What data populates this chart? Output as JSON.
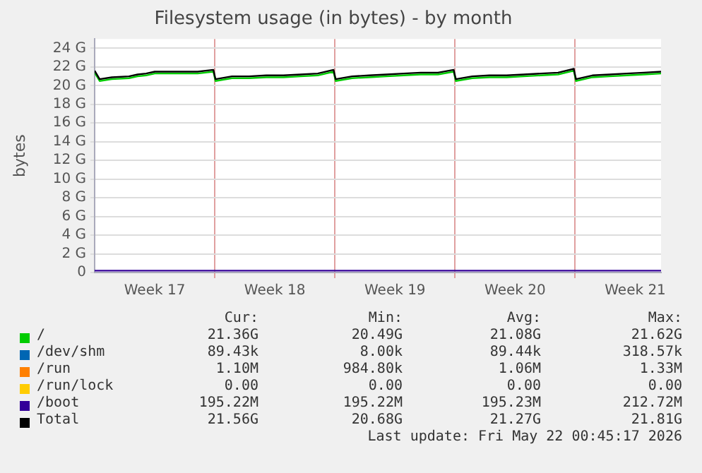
{
  "chart_data": {
    "type": "line",
    "title": "Filesystem usage (in bytes) - by month",
    "ylabel": "bytes",
    "x": [
      "2026-04-20T00:00",
      "2026-04-20T07:00",
      "2026-04-21T00:00",
      "2026-04-22T00:00",
      "2026-04-22T12:00",
      "2026-04-23T00:00",
      "2026-04-23T12:00",
      "2026-04-24T00:00",
      "2026-04-25T00:00",
      "2026-04-26T00:00",
      "2026-04-26T22:00",
      "2026-04-27T01:00",
      "2026-04-28T00:00",
      "2026-04-29T00:00",
      "2026-04-30T00:00",
      "2026-05-01T00:00",
      "2026-05-02T00:00",
      "2026-05-03T00:00",
      "2026-05-03T22:00",
      "2026-05-04T01:00",
      "2026-05-05T00:00",
      "2026-05-06T00:00",
      "2026-05-07T00:00",
      "2026-05-08T00:00",
      "2026-05-09T00:00",
      "2026-05-10T00:00",
      "2026-05-10T22:00",
      "2026-05-11T01:00",
      "2026-05-12T00:00",
      "2026-05-13T00:00",
      "2026-05-14T00:00",
      "2026-05-15T00:00",
      "2026-05-16T00:00",
      "2026-05-17T00:00",
      "2026-05-17T22:00",
      "2026-05-18T01:00",
      "2026-05-19T00:00",
      "2026-05-20T00:00",
      "2026-05-21T00:00",
      "2026-05-22T00:00",
      "2026-05-23T00:00"
    ],
    "series": [
      {
        "name": "/",
        "color": "#00cc00",
        "values": [
          21.4,
          20.5,
          20.7,
          20.8,
          21.0,
          21.1,
          21.3,
          21.3,
          21.3,
          21.3,
          21.5,
          20.5,
          20.8,
          20.8,
          20.9,
          20.9,
          21.0,
          21.1,
          21.5,
          20.5,
          20.8,
          20.9,
          21.0,
          21.1,
          21.2,
          21.2,
          21.5,
          20.5,
          20.8,
          20.9,
          20.9,
          21.0,
          21.1,
          21.2,
          21.6,
          20.5,
          20.9,
          21.0,
          21.1,
          21.2,
          21.3
        ]
      },
      {
        "name": "/dev/shm",
        "color": "#0066b3",
        "values": [
          null,
          null,
          null,
          null,
          null,
          null,
          null,
          null,
          null,
          null,
          null,
          null,
          null,
          null,
          null,
          null,
          null,
          null,
          null,
          null,
          null,
          null,
          null,
          null,
          null,
          null,
          null,
          null,
          null,
          null,
          null,
          null,
          null,
          null,
          null,
          null,
          null,
          null,
          null,
          null,
          null
        ]
      },
      {
        "name": "/run",
        "color": "#ff8000",
        "values": [
          null,
          null,
          null,
          null,
          null,
          null,
          null,
          null,
          null,
          null,
          null,
          null,
          null,
          null,
          null,
          null,
          null,
          null,
          null,
          null,
          null,
          null,
          null,
          null,
          null,
          null,
          null,
          null,
          null,
          null,
          null,
          null,
          null,
          null,
          null,
          null,
          null,
          null,
          null,
          null,
          null
        ]
      },
      {
        "name": "/run/lock",
        "color": "#ffcc00",
        "values": [
          null,
          null,
          null,
          null,
          null,
          null,
          null,
          null,
          null,
          null,
          null,
          null,
          null,
          null,
          null,
          null,
          null,
          null,
          null,
          null,
          null,
          null,
          null,
          null,
          null,
          null,
          null,
          null,
          null,
          null,
          null,
          null,
          null,
          null,
          null,
          null,
          null,
          null,
          null,
          null,
          null
        ]
      },
      {
        "name": "/boot",
        "color": "#330099",
        "values": [
          0.2,
          0.2,
          0.2,
          0.2,
          0.2,
          0.2,
          0.2,
          0.2,
          0.2,
          0.2,
          0.2,
          0.2,
          0.2,
          0.2,
          0.2,
          0.2,
          0.2,
          0.2,
          0.2,
          0.2,
          0.2,
          0.2,
          0.2,
          0.2,
          0.2,
          0.2,
          0.2,
          0.2,
          0.2,
          0.2,
          0.2,
          0.2,
          0.2,
          0.2,
          0.2,
          0.2,
          0.2,
          0.2,
          0.2,
          0.2,
          0.2
        ]
      },
      {
        "name": "Total",
        "color": "#000000",
        "values": [
          21.6,
          20.7,
          20.9,
          21.0,
          21.2,
          21.3,
          21.5,
          21.5,
          21.5,
          21.5,
          21.7,
          20.7,
          21.0,
          21.0,
          21.1,
          21.1,
          21.2,
          21.3,
          21.7,
          20.7,
          21.0,
          21.1,
          21.2,
          21.3,
          21.4,
          21.4,
          21.7,
          20.7,
          21.0,
          21.1,
          21.1,
          21.2,
          21.3,
          21.4,
          21.8,
          20.7,
          21.1,
          21.2,
          21.3,
          21.4,
          21.5
        ]
      }
    ],
    "xlim": [
      "2026-04-20T00:00",
      "2026-05-23T00:00"
    ],
    "xticks": [
      {
        "value": "2026-04-23T12:00",
        "label": "Week 17"
      },
      {
        "value": "2026-04-27T00:00",
        "label": null
      },
      {
        "value": "2026-04-30T12:00",
        "label": "Week 18"
      },
      {
        "value": "2026-05-04T00:00",
        "label": null
      },
      {
        "value": "2026-05-07T12:00",
        "label": "Week 19"
      },
      {
        "value": "2026-05-11T00:00",
        "label": null
      },
      {
        "value": "2026-05-14T12:00",
        "label": "Week 20"
      },
      {
        "value": "2026-05-18T00:00",
        "label": null
      },
      {
        "value": "2026-05-21T12:00",
        "label": "Week 21"
      }
    ],
    "ylim": [
      0,
      25
    ],
    "yticks": [
      {
        "value": 0,
        "label": "0"
      },
      {
        "value": 2,
        "label": "2 G"
      },
      {
        "value": 4,
        "label": "4 G"
      },
      {
        "value": 6,
        "label": "6 G"
      },
      {
        "value": 8,
        "label": "8 G"
      },
      {
        "value": 10,
        "label": "10 G"
      },
      {
        "value": 12,
        "label": "12 G"
      },
      {
        "value": 14,
        "label": "14 G"
      },
      {
        "value": 16,
        "label": "16 G"
      },
      {
        "value": 18,
        "label": "18 G"
      },
      {
        "value": 20,
        "label": "20 G"
      },
      {
        "value": 22,
        "label": "22 G"
      },
      {
        "value": 24,
        "label": "24 G"
      }
    ],
    "grid": true,
    "legend": "bottom",
    "marker": "none",
    "line_style": "solid",
    "annotations": [
      "Cur:",
      "Min:",
      "Avg:",
      "Max:",
      "21.36G",
      "20.49G",
      "21.08G",
      "21.62G",
      "89.43k",
      "8.00k",
      "89.44k",
      "318.57k",
      "1.10M",
      "984.80k",
      "1.06M",
      "1.33M",
      "0.00",
      "0.00",
      "0.00",
      "0.00",
      "195.22M",
      "195.22M",
      "195.23M",
      "212.72M",
      "21.56G",
      "20.68G",
      "21.27G",
      "21.81G",
      "Last update: Fri May 22 00:45:17 2026"
    ]
  }
}
